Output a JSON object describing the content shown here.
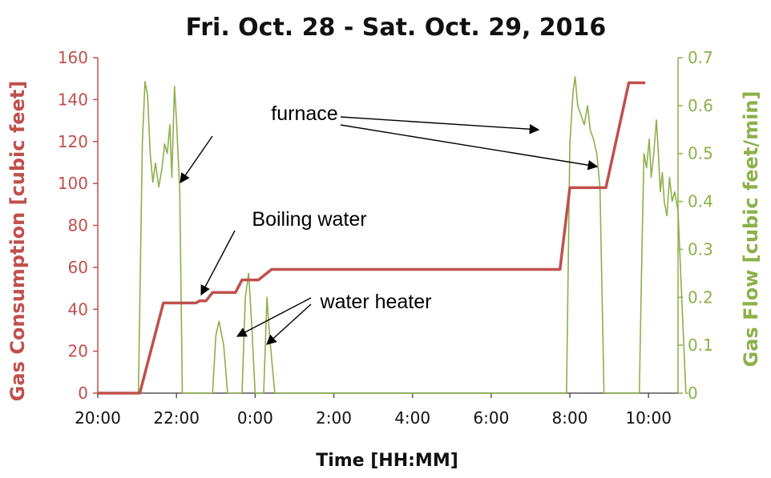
{
  "chart_data": {
    "type": "line",
    "title": "Fri. Oct. 28 - Sat. Oct. 29, 2016",
    "xlabel": "Time [HH:MM]",
    "ylabel_left": "Gas Consumption [cubic feet]",
    "ylabel_right": "Gas Flow [cubic feet/min]",
    "xlim": [
      20.0,
      10.75
    ],
    "x_ticks": [
      {
        "hour": 20,
        "label": "20:00"
      },
      {
        "hour": 22,
        "label": "22:00"
      },
      {
        "hour": 24,
        "label": "0:00"
      },
      {
        "hour": 26,
        "label": "2:00"
      },
      {
        "hour": 28,
        "label": "4:00"
      },
      {
        "hour": 30,
        "label": "6:00"
      },
      {
        "hour": 32,
        "label": "8:00"
      },
      {
        "hour": 34,
        "label": "10:00"
      }
    ],
    "y_left": {
      "min": 0,
      "max": 160,
      "ticks": [
        "0",
        "20",
        "40",
        "60",
        "80",
        "100",
        "120",
        "140",
        "160"
      ]
    },
    "y_right": {
      "min": 0,
      "max": 0.7,
      "ticks": [
        "0",
        "0.1",
        "0.2",
        "0.3",
        "0.4",
        "0.5",
        "0.6",
        "0.7"
      ]
    },
    "series": [
      {
        "axis": "left",
        "color": "#c0504d",
        "points": [
          [
            "20:00",
            0
          ],
          [
            "21:00",
            0
          ],
          [
            "21:04",
            0
          ],
          [
            "21:40",
            43
          ],
          [
            "22:30",
            43
          ],
          [
            "22:35",
            44
          ],
          [
            "22:45",
            44
          ],
          [
            "22:55",
            48
          ],
          [
            "23:30",
            48
          ],
          [
            "23:40",
            54
          ],
          [
            "24:05",
            54
          ],
          [
            "24:25",
            59
          ],
          [
            "31:45",
            59
          ],
          [
            "32:00",
            98
          ],
          [
            "32:55",
            98
          ],
          [
            "33:30",
            148
          ],
          [
            "33:55",
            148
          ]
        ]
      },
      {
        "axis": "right",
        "color": "#8db04a",
        "points": [
          [
            "20:00",
            0
          ],
          [
            "21:02",
            0
          ],
          [
            "21:08",
            0.52
          ],
          [
            "21:12",
            0.65
          ],
          [
            "21:16",
            0.62
          ],
          [
            "21:20",
            0.5
          ],
          [
            "21:24",
            0.44
          ],
          [
            "21:28",
            0.48
          ],
          [
            "21:33",
            0.43
          ],
          [
            "21:38",
            0.47
          ],
          [
            "21:42",
            0.52
          ],
          [
            "21:46",
            0.5
          ],
          [
            "21:50",
            0.56
          ],
          [
            "21:53",
            0.45
          ],
          [
            "21:57",
            0.64
          ],
          [
            "22:00",
            0.57
          ],
          [
            "22:05",
            0.42
          ],
          [
            "22:09",
            0
          ],
          [
            "22:55",
            0
          ],
          [
            "23:00",
            0.12
          ],
          [
            "23:05",
            0.15
          ],
          [
            "23:12",
            0.1
          ],
          [
            "23:18",
            0
          ],
          [
            "23:40",
            0
          ],
          [
            "23:45",
            0.2
          ],
          [
            "23:50",
            0.25
          ],
          [
            "23:55",
            0.14
          ],
          [
            "24:00",
            0
          ],
          [
            "24:13",
            0
          ],
          [
            "24:18",
            0.2
          ],
          [
            "24:22",
            0.12
          ],
          [
            "24:30",
            0
          ],
          [
            "31:55",
            0
          ],
          [
            "32:00",
            0.52
          ],
          [
            "32:05",
            0.63
          ],
          [
            "32:08",
            0.66
          ],
          [
            "32:12",
            0.6
          ],
          [
            "32:17",
            0.58
          ],
          [
            "32:22",
            0.56
          ],
          [
            "32:27",
            0.6
          ],
          [
            "32:31",
            0.55
          ],
          [
            "32:36",
            0.53
          ],
          [
            "32:41",
            0.5
          ],
          [
            "32:46",
            0.43
          ],
          [
            "32:52",
            0
          ],
          [
            "33:46",
            0
          ],
          [
            "33:50",
            0.3
          ],
          [
            "33:53",
            0.5
          ],
          [
            "33:57",
            0.47
          ],
          [
            "34:01",
            0.53
          ],
          [
            "34:04",
            0.45
          ],
          [
            "34:08",
            0.5
          ],
          [
            "34:12",
            0.57
          ],
          [
            "34:15",
            0.5
          ],
          [
            "34:18",
            0.42
          ],
          [
            "34:21",
            0.46
          ],
          [
            "34:24",
            0.4
          ],
          [
            "34:28",
            0.37
          ],
          [
            "34:32",
            0.45
          ],
          [
            "34:36",
            0.4
          ],
          [
            "34:40",
            0.42
          ],
          [
            "34:45",
            0.38
          ],
          [
            "34:50",
            0.22
          ],
          [
            "34:57",
            0
          ],
          [
            "35:00",
            0
          ]
        ]
      }
    ],
    "annotations": [
      {
        "text": "furnace",
        "tx": 21.5,
        "ty": 0.56
      },
      {
        "text": "Boiling water",
        "tx": 23.15,
        "ty": 0.355
      },
      {
        "text": "water heater",
        "tx": 26.25,
        "ty": 0.183
      }
    ],
    "grid": false,
    "legend": "none"
  }
}
